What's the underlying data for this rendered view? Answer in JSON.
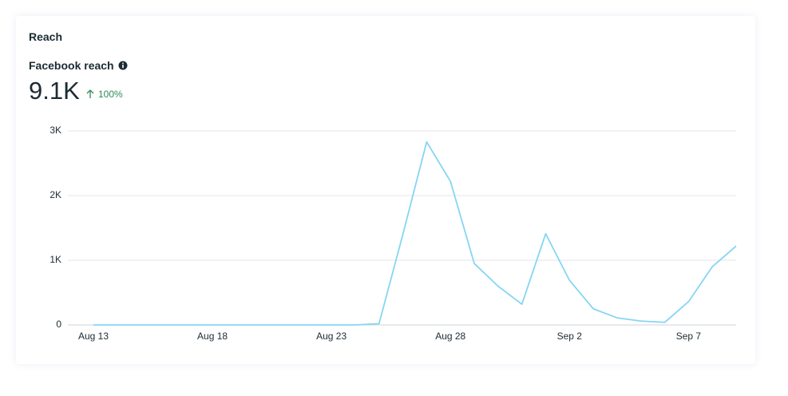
{
  "header": {
    "title": "Reach",
    "metric": "Facebook reach",
    "total": "9.1K",
    "change": "100%"
  },
  "chart_data": {
    "type": "line",
    "categories": [
      "Aug 13",
      null,
      null,
      null,
      null,
      "Aug 18",
      null,
      null,
      null,
      null,
      "Aug 23",
      null,
      null,
      null,
      null,
      "Aug 28",
      null,
      null,
      null,
      null,
      "Sep 2",
      null,
      null,
      null,
      null,
      "Sep 7",
      null,
      null
    ],
    "series": [
      {
        "name": "Facebook reach",
        "color": "#85d6f2",
        "values": [
          0,
          0,
          0,
          0,
          0,
          0,
          0,
          0,
          0,
          0,
          0,
          0,
          20,
          1400,
          2830,
          2220,
          950,
          600,
          320,
          1410,
          690,
          250,
          110,
          60,
          40,
          360,
          900,
          1220
        ]
      }
    ],
    "ylim": [
      0,
      3000
    ],
    "yticks": [
      0,
      {
        "value": 1000,
        "label": "1K"
      },
      {
        "value": 2000,
        "label": "2K"
      },
      {
        "value": 3000,
        "label": "3K"
      }
    ],
    "grid": true
  }
}
